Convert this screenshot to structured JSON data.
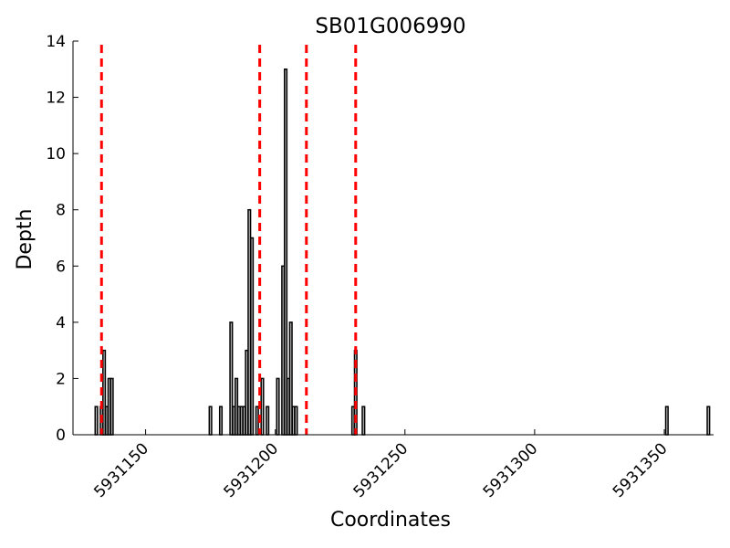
{
  "chart_data": {
    "type": "bar",
    "title": "SB01G006990",
    "xlabel": "Coordinates",
    "ylabel": "Depth",
    "xlim": [
      5931122,
      5931369
    ],
    "ylim": [
      0,
      14
    ],
    "x_ticks": [
      5931150,
      5931200,
      5931250,
      5931300,
      5931350
    ],
    "y_ticks": [
      0,
      2,
      4,
      6,
      8,
      10,
      12,
      14
    ],
    "x_tick_labels": [
      "5931150",
      "5931200",
      "5931250",
      "5931300",
      "5931350"
    ],
    "y_tick_labels": [
      "0",
      "2",
      "4",
      "6",
      "8",
      "10",
      "12",
      "14"
    ],
    "grid": false,
    "bar_color": "#bdbdbd",
    "bar_edge_color": "#000000",
    "marker_color": "#ff0000",
    "series": [
      {
        "positions": [
          5931131,
          5931133,
          5931134,
          5931135,
          5931136,
          5931137,
          5931175,
          5931179,
          5931183,
          5931184,
          5931185,
          5931186,
          5931187,
          5931188,
          5931189,
          5931190,
          5931191,
          5931193,
          5931195,
          5931197,
          5931201,
          5931203,
          5931204,
          5931205,
          5931206,
          5931207,
          5931208,
          5931230,
          5931231,
          5931234,
          5931351,
          5931367
        ],
        "depth": [
          1,
          1,
          3,
          1,
          2,
          2,
          1,
          1,
          4,
          1,
          2,
          1,
          1,
          1,
          3,
          8,
          7,
          1,
          2,
          1,
          2,
          6,
          13,
          2,
          4,
          1,
          1,
          1,
          3,
          1,
          1,
          1
        ]
      }
    ],
    "markers": [
      5931133,
      5931194,
      5931212,
      5931231
    ]
  }
}
